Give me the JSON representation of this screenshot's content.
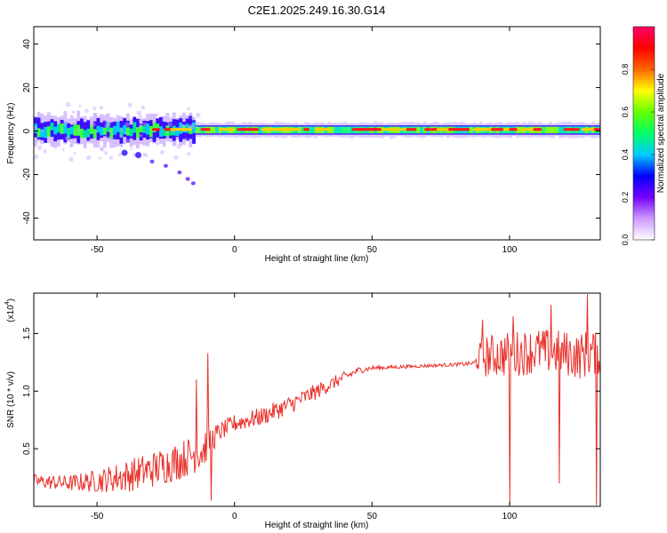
{
  "title": "C2E1.2025.249.16.30.G14",
  "spectrogram": {
    "type": "heatmap",
    "xlabel": "Height of straight line (km)",
    "ylabel": "Frequency (Hz)",
    "xlim": [
      -73,
      133
    ],
    "ylim": [
      -50,
      48
    ],
    "xticks": [
      -50,
      0,
      50,
      100
    ],
    "yticks": [
      -40,
      -20,
      0,
      20,
      40
    ],
    "xtick_labels": [
      "-50",
      "0",
      "50",
      "100"
    ],
    "ytick_labels": [
      "-40",
      "-20",
      "0",
      "20",
      "40"
    ],
    "colorbar": {
      "label": "Normalized spectral amplitude",
      "range": [
        0,
        1
      ],
      "ticks": [
        0.0,
        0.2,
        0.4,
        0.6,
        0.8
      ],
      "tick_labels": [
        "0.0",
        "0.2",
        "0.4",
        "0.6",
        "0.8"
      ],
      "colors": [
        "#ffffff",
        "#cc99ff",
        "#7700ff",
        "#0000ff",
        "#00ccff",
        "#00ff66",
        "#66ff00",
        "#ffff00",
        "#ff6600",
        "#ff0000",
        "#ff0066"
      ]
    },
    "band": {
      "center_hz": 0.5,
      "core_halfwidth_hz": 1.5,
      "outer_halfwidth_left_hz": 5,
      "outer_halfwidth_right_hz": 3
    },
    "side_trace": {
      "x_km": [
        -40,
        -35,
        -30,
        -25,
        -20,
        -17,
        -15
      ],
      "y_hz": [
        -10,
        -11,
        -14,
        -16,
        -19,
        -22,
        -24
      ]
    }
  },
  "snr": {
    "type": "line",
    "xlabel": "Height of straight line (km)",
    "ylabel": "SNR (10 * v/v)",
    "scale_label": "(x10",
    "scale_exp": "4",
    "scale_close": ")",
    "xlim": [
      -73,
      133
    ],
    "ylim": [
      0,
      1.85
    ],
    "xticks": [
      -50,
      0,
      50,
      100
    ],
    "yticks": [
      0.5,
      1.0,
      1.5
    ],
    "xtick_labels": [
      "-50",
      "0",
      "50",
      "100"
    ],
    "ytick_labels": [
      "0.5",
      "1.0",
      "1.5"
    ],
    "color": "#e8302a",
    "envelope": {
      "x": [
        -73,
        -60,
        -50,
        -40,
        -30,
        -20,
        -15,
        -11,
        -10,
        -5,
        0,
        10,
        20,
        30,
        40,
        45,
        50,
        60,
        70,
        80,
        87,
        90,
        100,
        110,
        120,
        125,
        130,
        133
      ],
      "mean": [
        0.22,
        0.2,
        0.22,
        0.26,
        0.32,
        0.4,
        0.45,
        0.5,
        0.55,
        0.65,
        0.72,
        0.78,
        0.88,
        1.0,
        1.12,
        1.18,
        1.2,
        1.21,
        1.22,
        1.23,
        1.24,
        1.3,
        1.32,
        1.35,
        1.33,
        1.3,
        1.34,
        1.3
      ],
      "noise": [
        0.06,
        0.07,
        0.1,
        0.14,
        0.16,
        0.17,
        0.17,
        0.18,
        0.14,
        0.08,
        0.08,
        0.08,
        0.08,
        0.07,
        0.05,
        0.03,
        0.02,
        0.015,
        0.015,
        0.015,
        0.02,
        0.18,
        0.2,
        0.2,
        0.2,
        0.2,
        0.22,
        0.15
      ]
    },
    "spikes": [
      {
        "x": -14,
        "y": 1.1
      },
      {
        "x": -10,
        "y": 1.33
      },
      {
        "x": -8.8,
        "y": 0.05
      },
      {
        "x": 90,
        "y": 1.62
      },
      {
        "x": 100,
        "y": 0.02
      },
      {
        "x": 101,
        "y": 1.65
      },
      {
        "x": 115,
        "y": 1.75
      },
      {
        "x": 118,
        "y": 0.2
      },
      {
        "x": 128,
        "y": 1.84
      },
      {
        "x": 131.5,
        "y": 0.01
      }
    ]
  }
}
